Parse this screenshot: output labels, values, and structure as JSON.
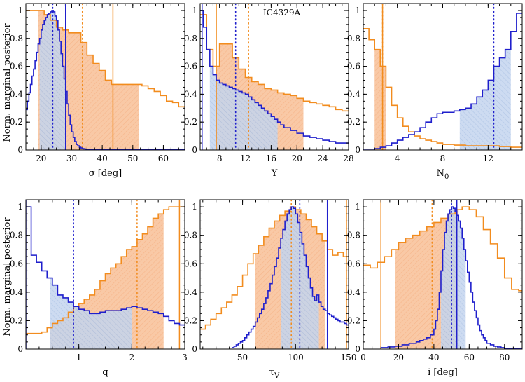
{
  "figure": {
    "ylabel": "Norm. marginal posterior",
    "colors": {
      "orange": "#F28C1E",
      "blue": "#1F1FCC",
      "orange_fill": "#F9C9A6",
      "blue_fill": "#B8CCEA"
    }
  },
  "chart_data": [
    {
      "type": "histogram",
      "name": "sigma",
      "xlabel": "σ [deg]",
      "xlim": [
        15,
        67
      ],
      "ylim": [
        0,
        1.05
      ],
      "xticks": [
        20,
        30,
        40,
        50,
        60
      ],
      "yticks": [
        0,
        0.2,
        0.4,
        0.6,
        0.8,
        1
      ],
      "annotation": "",
      "orange": {
        "edges": [
          15,
          17,
          19,
          21,
          23,
          25,
          27,
          29,
          31,
          33,
          35,
          37,
          39,
          41,
          43,
          45,
          47,
          49,
          51,
          53,
          55,
          57,
          59,
          61,
          63,
          65,
          67
        ],
        "values": [
          1.0,
          1.0,
          1.0,
          0.97,
          0.93,
          0.88,
          0.86,
          0.84,
          0.84,
          0.77,
          0.68,
          0.62,
          0.57,
          0.5,
          0.47,
          0.47,
          0.47,
          0.47,
          0.47,
          0.46,
          0.44,
          0.42,
          0.39,
          0.35,
          0.34,
          0.31
        ],
        "shade": [
          19,
          52
        ],
        "median": 33.5,
        "true": 43.5
      },
      "blue": {
        "edges": [
          15,
          15.5,
          16,
          16.5,
          17,
          17.5,
          18,
          18.5,
          19,
          19.5,
          20,
          20.5,
          21,
          21.5,
          22,
          22.5,
          23,
          23.5,
          24,
          24.5,
          25,
          25.5,
          26,
          26.5,
          27,
          27.5,
          28,
          28.5,
          29,
          29.5,
          30,
          30.5,
          31,
          31.5,
          32,
          32.5,
          33,
          33.5,
          34,
          34.5,
          35,
          36,
          37,
          38,
          40,
          67
        ],
        "values": [
          0.29,
          0.35,
          0.41,
          0.47,
          0.53,
          0.58,
          0.64,
          0.7,
          0.76,
          0.8,
          0.86,
          0.9,
          0.93,
          0.95,
          0.97,
          0.98,
          0.99,
          1.0,
          0.99,
          0.96,
          0.93,
          0.86,
          0.78,
          0.69,
          0.6,
          0.51,
          0.42,
          0.33,
          0.25,
          0.18,
          0.13,
          0.09,
          0.06,
          0.04,
          0.03,
          0.02,
          0.015,
          0.01,
          0.008,
          0.006,
          0.005,
          0.004,
          0.003,
          0.002,
          0.002
        ],
        "shade": [
          19.5,
          28
        ],
        "median": 23.8,
        "true": 28
      }
    },
    {
      "type": "histogram",
      "name": "Y",
      "xlabel": "Y",
      "xlim": [
        5,
        28
      ],
      "ylim": [
        0,
        1.05
      ],
      "xticks": [
        8,
        12,
        16,
        20,
        24,
        28
      ],
      "yticks": [
        0,
        0.2,
        0.4,
        0.6,
        0.8,
        1
      ],
      "annotation": "IC4329A",
      "orange": {
        "edges": [
          5,
          6,
          7,
          8,
          9,
          10,
          11,
          12,
          13,
          14,
          15,
          16,
          17,
          18,
          19,
          20,
          21,
          22,
          23,
          24,
          25,
          26,
          27,
          28
        ],
        "values": [
          0.97,
          0.72,
          0.6,
          0.76,
          0.76,
          0.66,
          0.58,
          0.52,
          0.49,
          0.47,
          0.44,
          0.43,
          0.41,
          0.4,
          0.39,
          0.37,
          0.35,
          0.34,
          0.33,
          0.32,
          0.31,
          0.29,
          0.28
        ],
        "shade": [
          7.5,
          21
        ],
        "median": 12.5,
        "true": 7.5
      },
      "blue": {
        "edges": [
          5,
          5.5,
          6,
          6.5,
          7,
          7.5,
          8,
          8.5,
          9,
          9.5,
          10,
          10.5,
          11,
          11.5,
          12,
          12.5,
          13,
          13.5,
          14,
          14.5,
          15,
          15.5,
          16,
          16.5,
          17,
          17.5,
          18,
          19,
          20,
          21,
          22,
          23,
          24,
          25,
          26,
          27,
          28
        ],
        "values": [
          1.0,
          0.88,
          0.72,
          0.6,
          0.54,
          0.5,
          0.48,
          0.47,
          0.46,
          0.45,
          0.44,
          0.43,
          0.42,
          0.41,
          0.4,
          0.38,
          0.36,
          0.34,
          0.32,
          0.3,
          0.28,
          0.26,
          0.24,
          0.22,
          0.2,
          0.18,
          0.16,
          0.14,
          0.12,
          0.1,
          0.09,
          0.08,
          0.07,
          0.06,
          0.05,
          0.05
        ],
        "shade": [
          6.5,
          17
        ],
        "median": 10.5,
        "true": 5.3
      }
    },
    {
      "type": "histogram",
      "name": "N0",
      "xlabel": "N",
      "xlabel_sub": "0",
      "xlim": [
        1,
        15
      ],
      "ylim": [
        0,
        1.05
      ],
      "xticks": [
        4,
        8,
        12
      ],
      "yticks": [
        0,
        0.2,
        0.4,
        0.6,
        0.8,
        1
      ],
      "annotation": "",
      "orange": {
        "edges": [
          1,
          1.5,
          2,
          2.5,
          3,
          3.5,
          4,
          4.5,
          5,
          5.5,
          6,
          6.5,
          7,
          7.5,
          8,
          9,
          10,
          11,
          12,
          13,
          14,
          15
        ],
        "values": [
          0.87,
          0.79,
          0.72,
          0.6,
          0.45,
          0.32,
          0.23,
          0.17,
          0.13,
          0.1,
          0.08,
          0.07,
          0.06,
          0.05,
          0.04,
          0.035,
          0.03,
          0.03,
          0.03,
          0.025,
          0.02
        ],
        "shade": [
          2,
          3
        ],
        "median": 2.7,
        "true": 2.7
      },
      "blue": {
        "edges": [
          1,
          1.5,
          2,
          2.5,
          3,
          3.5,
          4,
          4.5,
          5,
          5.5,
          6,
          6.5,
          7,
          7.5,
          8,
          8.5,
          9,
          9.5,
          10,
          10.5,
          11,
          11.5,
          12,
          12.5,
          13,
          13.5,
          14,
          14.5,
          15
        ],
        "values": [
          0.0,
          0.0,
          0.01,
          0.02,
          0.03,
          0.05,
          0.07,
          0.09,
          0.11,
          0.13,
          0.16,
          0.2,
          0.23,
          0.26,
          0.27,
          0.27,
          0.28,
          0.29,
          0.3,
          0.33,
          0.38,
          0.43,
          0.5,
          0.6,
          0.66,
          0.72,
          0.85,
          0.98
        ],
        "shade": [
          9.5,
          14
        ],
        "median": 12.5,
        "true": null
      }
    },
    {
      "type": "histogram",
      "name": "q",
      "xlabel": "q",
      "xlim": [
        0,
        3
      ],
      "ylim": [
        0,
        1.05
      ],
      "xticks": [
        1,
        2,
        3
      ],
      "yticks": [
        0,
        0.2,
        0.4,
        0.6,
        0.8,
        1
      ],
      "annotation": "",
      "orange": {
        "edges": [
          0,
          0.1,
          0.2,
          0.3,
          0.4,
          0.5,
          0.6,
          0.7,
          0.8,
          0.9,
          1.0,
          1.1,
          1.2,
          1.3,
          1.4,
          1.5,
          1.6,
          1.7,
          1.8,
          1.9,
          2.0,
          2.1,
          2.2,
          2.3,
          2.4,
          2.5,
          2.6,
          2.7,
          2.8,
          2.9,
          3.0
        ],
        "values": [
          0.11,
          0.11,
          0.11,
          0.12,
          0.15,
          0.18,
          0.2,
          0.22,
          0.26,
          0.3,
          0.32,
          0.35,
          0.38,
          0.42,
          0.48,
          0.53,
          0.57,
          0.6,
          0.65,
          0.7,
          0.72,
          0.77,
          0.81,
          0.86,
          0.92,
          0.95,
          0.98,
          1.0,
          1.0,
          1.0
        ],
        "shade": [
          0.45,
          2.6
        ],
        "median": 2.1,
        "true": 2.9
      },
      "blue": {
        "edges": [
          0,
          0.1,
          0.2,
          0.3,
          0.4,
          0.5,
          0.6,
          0.7,
          0.8,
          0.9,
          1.0,
          1.1,
          1.2,
          1.3,
          1.4,
          1.5,
          1.6,
          1.7,
          1.8,
          1.9,
          2.0,
          2.1,
          2.2,
          2.3,
          2.4,
          2.5,
          2.6,
          2.7,
          2.8,
          2.9,
          3.0
        ],
        "values": [
          1.0,
          0.66,
          0.61,
          0.55,
          0.5,
          0.45,
          0.38,
          0.36,
          0.33,
          0.3,
          0.28,
          0.27,
          0.25,
          0.25,
          0.26,
          0.27,
          0.27,
          0.27,
          0.28,
          0.29,
          0.3,
          0.29,
          0.28,
          0.27,
          0.26,
          0.25,
          0.23,
          0.2,
          0.18,
          0.17
        ],
        "shade": [
          0.45,
          2.0
        ],
        "median": 0.9,
        "true": 0.0
      }
    },
    {
      "type": "histogram",
      "name": "tauV",
      "xlabel": "τ",
      "xlabel_sub": "V",
      "xlim": [
        10,
        150
      ],
      "ylim": [
        0,
        1.05
      ],
      "xticks": [
        50,
        100,
        150
      ],
      "yticks": [
        0,
        0.2,
        0.4,
        0.6,
        0.8,
        1
      ],
      "annotation": "",
      "orange": {
        "edges": [
          10,
          15,
          20,
          25,
          30,
          35,
          40,
          45,
          50,
          55,
          60,
          65,
          70,
          75,
          80,
          85,
          90,
          95,
          100,
          105,
          110,
          115,
          120,
          125,
          130,
          135,
          140,
          145,
          150
        ],
        "values": [
          0.14,
          0.17,
          0.21,
          0.25,
          0.29,
          0.33,
          0.38,
          0.44,
          0.52,
          0.6,
          0.67,
          0.73,
          0.79,
          0.85,
          0.9,
          0.94,
          0.97,
          1.0,
          0.98,
          0.95,
          0.91,
          0.86,
          0.81,
          0.76,
          0.7,
          0.66,
          0.68,
          0.65
        ],
        "shade": [
          62,
          128
        ],
        "median": 96,
        "true": 148
      },
      "blue": {
        "edges": [
          40,
          42,
          44,
          46,
          48,
          50,
          52,
          54,
          56,
          58,
          60,
          62,
          64,
          66,
          68,
          70,
          72,
          74,
          76,
          78,
          80,
          82,
          84,
          86,
          88,
          90,
          92,
          94,
          96,
          98,
          100,
          102,
          104,
          106,
          108,
          110,
          112,
          114,
          116,
          118,
          120,
          122,
          124,
          126,
          128,
          130,
          132,
          134,
          136,
          138,
          140,
          142,
          144,
          146,
          148,
          150
        ],
        "values": [
          0.01,
          0.02,
          0.03,
          0.04,
          0.05,
          0.06,
          0.08,
          0.1,
          0.12,
          0.14,
          0.16,
          0.19,
          0.22,
          0.25,
          0.28,
          0.32,
          0.36,
          0.41,
          0.46,
          0.52,
          0.58,
          0.64,
          0.71,
          0.78,
          0.84,
          0.9,
          0.95,
          0.98,
          1.0,
          0.99,
          0.95,
          0.89,
          0.82,
          0.74,
          0.66,
          0.58,
          0.5,
          0.43,
          0.37,
          0.34,
          0.38,
          0.33,
          0.3,
          0.28,
          0.27,
          0.25,
          0.24,
          0.23,
          0.22,
          0.21,
          0.2,
          0.19,
          0.19,
          0.18,
          0.17
        ],
        "shade": [
          86,
          122
        ],
        "median": 104,
        "true": 130
      }
    },
    {
      "type": "histogram",
      "name": "i",
      "xlabel": "i [deg]",
      "xlim": [
        0,
        90
      ],
      "ylim": [
        0,
        1.05
      ],
      "xticks": [
        0,
        20,
        40,
        60,
        80
      ],
      "yticks": [
        0,
        0.2,
        0.4,
        0.6,
        0.8,
        1
      ],
      "annotation": "",
      "orange": {
        "edges": [
          0,
          4,
          8,
          12,
          16,
          20,
          24,
          28,
          32,
          36,
          40,
          44,
          48,
          52,
          56,
          60,
          64,
          68,
          72,
          76,
          80,
          84,
          88,
          90
        ],
        "values": [
          0.59,
          0.57,
          0.61,
          0.65,
          0.7,
          0.75,
          0.78,
          0.8,
          0.83,
          0.86,
          0.89,
          0.92,
          0.95,
          0.98,
          1.0,
          0.98,
          0.93,
          0.84,
          0.74,
          0.64,
          0.5,
          0.42,
          0.41
        ],
        "shade": [
          18,
          54
        ],
        "median": 39,
        "true": 10
      },
      "blue": {
        "edges": [
          10,
          14,
          18,
          22,
          26,
          30,
          32,
          34,
          36,
          38,
          40,
          41,
          42,
          43,
          44,
          45,
          46,
          47,
          48,
          49,
          50,
          51,
          52,
          53,
          54,
          55,
          56,
          57,
          58,
          59,
          60,
          61,
          62,
          63,
          64,
          65,
          66,
          67,
          68,
          69,
          70,
          72,
          74,
          76,
          78,
          80,
          82,
          84,
          90
        ],
        "values": [
          0.01,
          0.015,
          0.02,
          0.03,
          0.04,
          0.05,
          0.06,
          0.07,
          0.08,
          0.1,
          0.14,
          0.2,
          0.28,
          0.4,
          0.55,
          0.7,
          0.82,
          0.9,
          0.95,
          0.98,
          1.0,
          0.99,
          0.97,
          0.94,
          0.9,
          0.85,
          0.78,
          0.7,
          0.62,
          0.54,
          0.47,
          0.4,
          0.33,
          0.27,
          0.22,
          0.17,
          0.13,
          0.1,
          0.08,
          0.06,
          0.04,
          0.03,
          0.02,
          0.015,
          0.01,
          0.005,
          0.003,
          0.002
        ],
        "shade": [
          44,
          58
        ],
        "median": 50,
        "true": 53
      }
    }
  ]
}
